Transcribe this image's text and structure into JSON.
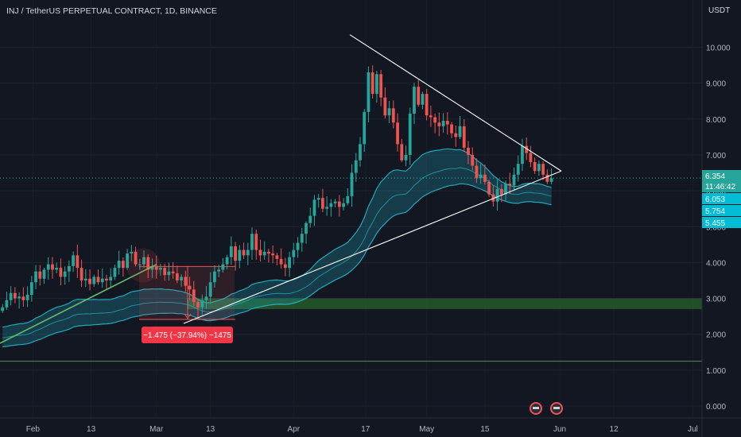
{
  "header": {
    "symbol_title": "INJ / TetherUS PERPETUAL CONTRACT, 1D, BINANCE",
    "currency": "USDT"
  },
  "price_scale": {
    "ticks": [
      "0.000",
      "1.000",
      "2.000",
      "3.000",
      "4.000",
      "5.000",
      "6.000",
      "7.000",
      "8.000",
      "9.000",
      "10.000"
    ]
  },
  "time_axis": {
    "labels": [
      "Feb",
      "13",
      "Mar",
      "13",
      "Apr",
      "17",
      "May",
      "15",
      "Jun",
      "12",
      "Jul"
    ]
  },
  "badges": {
    "last_price": "6.354",
    "countdown": "11:46:42",
    "ma_1": "6.053",
    "ma_2": "5.754",
    "ma_3": "5.455"
  },
  "measure_label": "−1.475 (−37.94%) −1475",
  "colors": {
    "up": "#26a69a",
    "down": "#ef5350",
    "band": "#26c6da",
    "trendline": "#ffffff",
    "green_line": "#66bb6a",
    "support_zone": "#2e7d32",
    "last_price_badge": "#26a69a",
    "ma_badge": "#00bcd4",
    "measure_badge": "#f23645"
  },
  "chart_data": {
    "type": "candlestick",
    "symbol": "INJ / TetherUS PERPETUAL CONTRACT",
    "interval": "1D",
    "exchange": "BINANCE",
    "ylim": [
      0,
      11
    ],
    "y_ticks": [
      0,
      1,
      2,
      3,
      4,
      5,
      6,
      7,
      8,
      9,
      10
    ],
    "x_ticks": [
      "Feb",
      "13",
      "Mar",
      "13",
      "Apr",
      "17",
      "May",
      "15",
      "Jun",
      "12",
      "Jul"
    ],
    "closes": [
      2.75,
      2.95,
      3.15,
      3.0,
      3.05,
      2.95,
      3.1,
      3.45,
      3.75,
      3.55,
      3.8,
      3.95,
      3.8,
      3.85,
      3.6,
      3.75,
      3.9,
      4.2,
      3.85,
      3.5,
      3.55,
      3.4,
      3.6,
      3.45,
      3.55,
      3.5,
      3.6,
      3.85,
      4.05,
      3.85,
      4.25,
      4.3,
      3.95,
      3.95,
      4.15,
      3.8,
      3.9,
      3.8,
      3.85,
      3.65,
      3.75,
      3.7,
      3.5,
      3.6,
      3.35,
      3.25,
      2.9,
      2.75,
      2.95,
      3.05,
      3.45,
      3.75,
      3.8,
      3.95,
      4.15,
      4.45,
      4.05,
      4.35,
      4.2,
      4.35,
      4.8,
      4.35,
      4.2,
      4.3,
      4.25,
      4.2,
      4.1,
      3.95,
      3.85,
      4.15,
      4.35,
      4.55,
      4.8,
      5.1,
      5.3,
      5.75,
      5.8,
      5.5,
      5.55,
      5.65,
      5.7,
      5.55,
      5.65,
      5.85,
      6.5,
      6.85,
      7.3,
      8.2,
      9.3,
      8.7,
      9.25,
      8.6,
      8.1,
      8.3,
      7.9,
      7.3,
      6.85,
      7.0,
      8.15,
      8.9,
      8.4,
      8.7,
      8.1,
      8.05,
      7.9,
      7.8,
      7.95,
      7.85,
      7.6,
      7.5,
      7.8,
      7.2,
      7.0,
      6.7,
      6.35,
      6.45,
      6.25,
      5.9,
      5.7,
      6.05,
      5.9,
      6.2,
      6.15,
      6.45,
      6.75,
      7.25,
      7.05,
      6.8,
      6.55,
      6.75,
      6.45,
      6.25,
      6.35
    ],
    "annotations": {
      "triangle_upper": {
        "from": [
          6,
          10.35
        ],
        "to": [
          148,
          6.55
        ]
      },
      "triangle_lower": {
        "from": [
          48,
          2.3
        ],
        "to": [
          148,
          6.55
        ]
      },
      "early_uptrend": {
        "from": [
          0,
          1.75
        ],
        "to": [
          41,
          3.95
        ]
      },
      "measure": {
        "from_price": 3.89,
        "to_price": 2.415,
        "change": -1.475,
        "change_pct": -37.94
      },
      "support_zone": [
        2.7,
        3.0
      ],
      "horizontal_line": 1.25,
      "last_price": 6.354,
      "ma_values": [
        6.053,
        5.754,
        5.455
      ]
    }
  }
}
